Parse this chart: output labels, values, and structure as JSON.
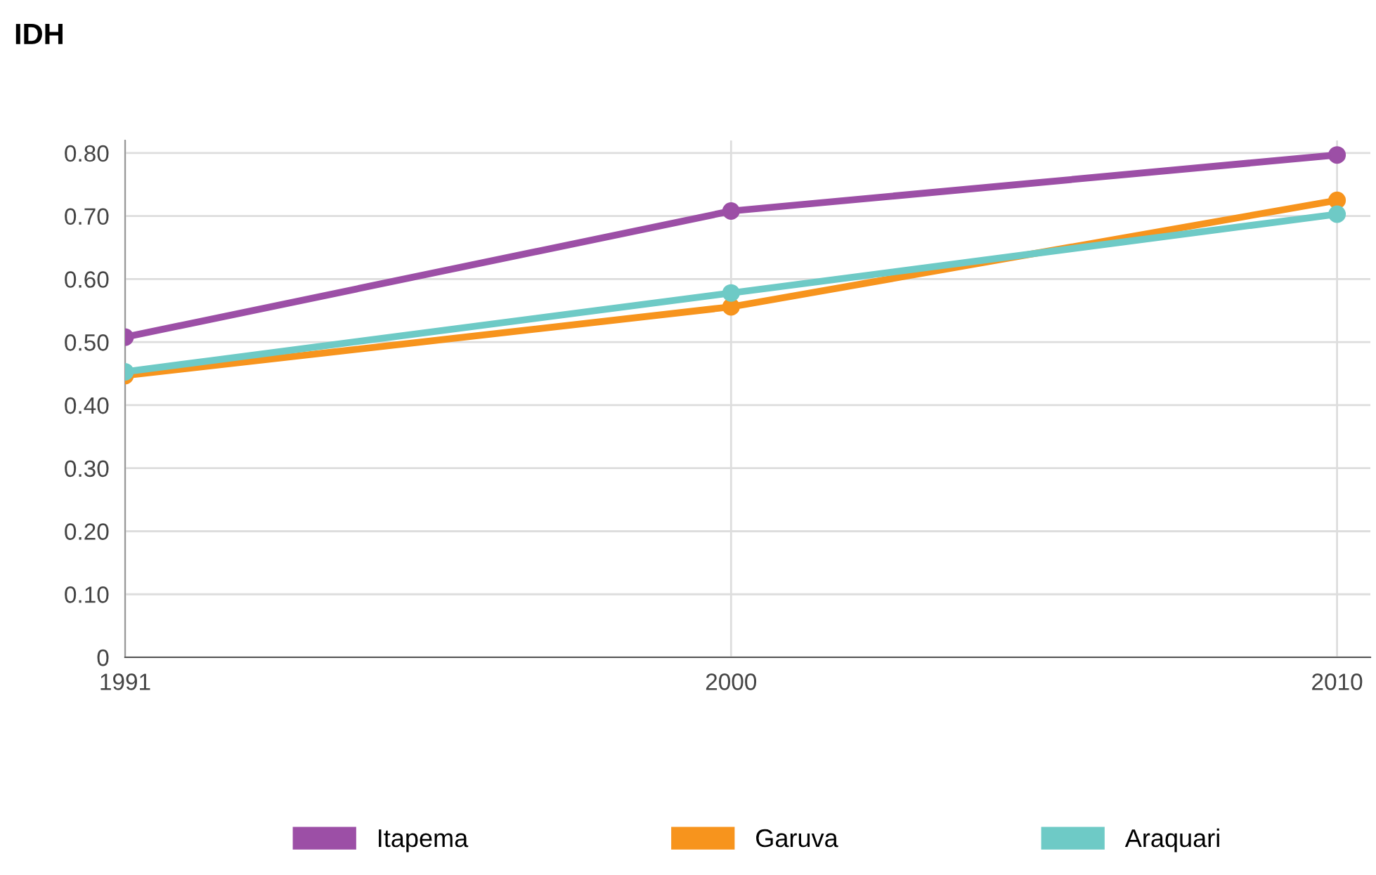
{
  "chart_data": {
    "type": "line",
    "title": "IDH",
    "categories": [
      "1991",
      "2000",
      "2010"
    ],
    "series": [
      {
        "name": "Itapema",
        "color": "#9c4fa6",
        "values": [
          0.508,
          0.708,
          0.797
        ]
      },
      {
        "name": "Garuva",
        "color": "#f7941d",
        "values": [
          0.447,
          0.556,
          0.725
        ]
      },
      {
        "name": "Araquari",
        "color": "#6ecac6",
        "values": [
          0.453,
          0.578,
          0.703
        ]
      }
    ],
    "ylim": [
      0,
      0.82
    ],
    "yticks": [
      0,
      {
        "value": 0.1,
        "label": "0.10"
      },
      {
        "value": 0.2,
        "label": "0.20"
      },
      {
        "value": 0.3,
        "label": "0.30"
      },
      {
        "value": 0.4,
        "label": "0.40"
      },
      {
        "value": 0.5,
        "label": "0.50"
      },
      {
        "value": 0.6,
        "label": "0.60"
      },
      {
        "value": 0.7,
        "label": "0.70"
      },
      {
        "value": 0.8,
        "label": "0.80"
      }
    ],
    "grid": true,
    "legend": "bottom",
    "marker": "circle",
    "line_style": "solid"
  }
}
